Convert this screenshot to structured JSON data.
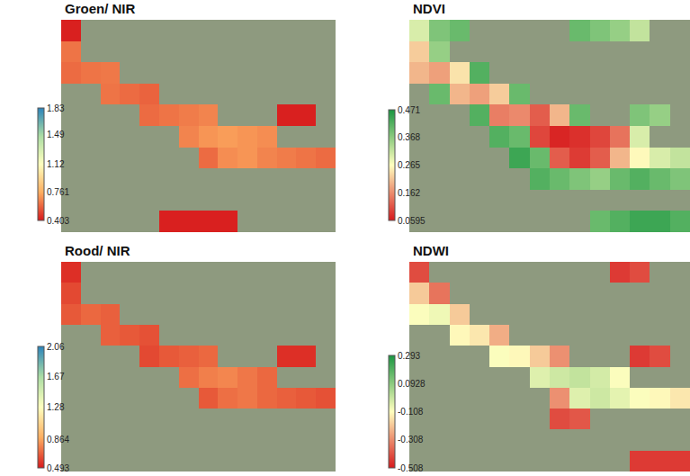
{
  "chart_data": [
    {
      "type": "heatmap",
      "title": "Groen/ NIR",
      "tick_labels": false,
      "colorbar_range": [
        0.403,
        1.83
      ],
      "colorbar_ticks": [
        0.403,
        0.761,
        1.12,
        1.49,
        1.83
      ],
      "cells": [
        [
          0.42,
          null,
          null,
          null,
          null,
          null,
          null,
          null,
          null,
          null,
          null,
          null,
          null,
          null
        ],
        [
          0.62,
          null,
          null,
          null,
          null,
          null,
          null,
          null,
          null,
          null,
          null,
          null,
          null,
          null
        ],
        [
          0.6,
          0.62,
          0.63,
          null,
          null,
          null,
          null,
          null,
          null,
          null,
          null,
          null,
          null,
          null
        ],
        [
          null,
          null,
          0.62,
          0.6,
          0.58,
          null,
          null,
          null,
          null,
          null,
          null,
          null,
          null,
          null
        ],
        [
          null,
          null,
          null,
          null,
          0.6,
          0.62,
          0.64,
          0.66,
          null,
          null,
          null,
          0.42,
          0.42,
          null
        ],
        [
          null,
          null,
          null,
          null,
          null,
          null,
          0.66,
          0.7,
          0.72,
          0.7,
          0.68,
          null,
          null,
          null
        ],
        [
          null,
          null,
          null,
          null,
          null,
          null,
          null,
          0.6,
          0.68,
          0.7,
          0.66,
          0.64,
          0.62,
          0.6
        ],
        [
          null,
          null,
          null,
          null,
          null,
          null,
          null,
          null,
          null,
          null,
          null,
          null,
          null,
          null
        ],
        [
          null,
          null,
          null,
          null,
          null,
          null,
          null,
          null,
          null,
          null,
          null,
          null,
          null,
          null
        ],
        [
          null,
          null,
          null,
          null,
          null,
          0.42,
          0.42,
          0.42,
          0.42,
          null,
          null,
          null,
          null,
          null
        ]
      ]
    },
    {
      "type": "heatmap",
      "title": "NDVI",
      "tick_labels": false,
      "colorbar_range": [
        0.0595,
        0.471
      ],
      "colorbar_ticks": [
        0.0595,
        0.162,
        0.265,
        0.368,
        0.471
      ],
      "cells": [
        [
          0.3,
          0.38,
          0.4,
          null,
          null,
          null,
          null,
          null,
          0.4,
          0.38,
          0.36,
          0.32,
          null,
          null
        ],
        [
          0.22,
          0.36,
          null,
          null,
          null,
          null,
          null,
          null,
          null,
          null,
          null,
          null,
          null,
          null
        ],
        [
          0.2,
          0.18,
          0.24,
          0.42,
          null,
          null,
          null,
          null,
          null,
          null,
          null,
          null,
          null,
          null
        ],
        [
          null,
          0.4,
          0.2,
          0.18,
          0.22,
          0.4,
          null,
          null,
          null,
          null,
          null,
          null,
          null,
          null
        ],
        [
          null,
          null,
          null,
          0.42,
          0.15,
          0.16,
          0.12,
          0.2,
          0.4,
          null,
          null,
          0.38,
          0.36,
          null
        ],
        [
          null,
          null,
          null,
          null,
          0.42,
          0.4,
          0.1,
          0.07,
          0.08,
          0.1,
          0.14,
          0.3,
          null,
          null
        ],
        [
          null,
          null,
          null,
          null,
          null,
          0.44,
          0.4,
          0.12,
          0.09,
          0.12,
          0.2,
          0.26,
          0.3,
          0.32
        ],
        [
          null,
          null,
          null,
          null,
          null,
          null,
          0.42,
          0.4,
          0.38,
          0.36,
          0.4,
          0.42,
          0.4,
          0.38
        ],
        [
          null,
          null,
          null,
          null,
          null,
          null,
          null,
          null,
          null,
          null,
          null,
          null,
          null,
          null
        ],
        [
          null,
          null,
          null,
          null,
          null,
          null,
          null,
          null,
          null,
          0.4,
          0.42,
          0.44,
          0.44,
          0.42
        ]
      ]
    },
    {
      "type": "heatmap",
      "title": "Rood/ NIR",
      "tick_labels": false,
      "colorbar_range": [
        0.493,
        2.06
      ],
      "colorbar_ticks": [
        0.493,
        0.864,
        1.28,
        1.67,
        2.06
      ],
      "cells": [
        [
          0.55,
          null,
          null,
          null,
          null,
          null,
          null,
          null,
          null,
          null,
          null,
          null,
          null,
          null
        ],
        [
          0.62,
          null,
          null,
          null,
          null,
          null,
          null,
          null,
          null,
          null,
          null,
          null,
          null,
          null
        ],
        [
          0.66,
          0.7,
          0.68,
          null,
          null,
          null,
          null,
          null,
          null,
          null,
          null,
          null,
          null,
          null
        ],
        [
          null,
          null,
          0.68,
          0.66,
          0.64,
          null,
          null,
          null,
          null,
          null,
          null,
          null,
          null,
          null
        ],
        [
          null,
          null,
          null,
          null,
          0.62,
          0.66,
          0.68,
          0.7,
          null,
          null,
          null,
          0.55,
          0.55,
          null
        ],
        [
          null,
          null,
          null,
          null,
          null,
          null,
          0.72,
          0.76,
          0.78,
          0.74,
          0.7,
          null,
          null,
          null
        ],
        [
          null,
          null,
          null,
          null,
          null,
          null,
          null,
          0.66,
          0.72,
          0.74,
          0.7,
          0.68,
          0.66,
          0.64
        ],
        [
          null,
          null,
          null,
          null,
          null,
          null,
          null,
          null,
          null,
          null,
          null,
          null,
          null,
          null
        ],
        [
          null,
          null,
          null,
          null,
          null,
          null,
          null,
          null,
          null,
          null,
          null,
          null,
          null,
          null
        ],
        [
          null,
          null,
          null,
          null,
          null,
          null,
          null,
          null,
          null,
          null,
          null,
          null,
          null,
          null
        ]
      ]
    },
    {
      "type": "heatmap",
      "title": "NDWI",
      "tick_labels": false,
      "colorbar_range": [
        -0.508,
        0.293
      ],
      "colorbar_ticks": [
        -0.508,
        -0.308,
        -0.108,
        0.0928,
        0.293
      ],
      "cells": [
        [
          -0.42,
          null,
          null,
          null,
          null,
          null,
          null,
          null,
          null,
          null,
          -0.45,
          -0.42,
          null,
          null
        ],
        [
          -0.2,
          -0.35,
          null,
          null,
          null,
          null,
          null,
          null,
          null,
          null,
          null,
          null,
          null,
          null
        ],
        [
          -0.1,
          -0.08,
          -0.2,
          null,
          null,
          null,
          null,
          null,
          null,
          null,
          null,
          null,
          null,
          null
        ],
        [
          null,
          null,
          -0.12,
          -0.15,
          -0.25,
          null,
          null,
          null,
          null,
          null,
          null,
          null,
          null,
          null
        ],
        [
          null,
          null,
          null,
          null,
          -0.1,
          -0.12,
          -0.2,
          -0.3,
          null,
          null,
          null,
          -0.45,
          -0.42,
          null
        ],
        [
          null,
          null,
          null,
          null,
          null,
          null,
          -0.05,
          -0.02,
          0.0,
          -0.03,
          -0.1,
          null,
          null,
          null
        ],
        [
          null,
          null,
          null,
          null,
          null,
          null,
          null,
          -0.3,
          -0.05,
          -0.02,
          -0.06,
          -0.1,
          -0.12,
          -0.15
        ],
        [
          null,
          null,
          null,
          null,
          null,
          null,
          null,
          -0.42,
          -0.4,
          null,
          null,
          null,
          null,
          null
        ],
        [
          null,
          null,
          null,
          null,
          null,
          null,
          null,
          null,
          null,
          null,
          null,
          null,
          null,
          null
        ],
        [
          null,
          null,
          null,
          null,
          null,
          null,
          null,
          null,
          null,
          null,
          null,
          -0.45,
          -0.45,
          -0.45
        ]
      ]
    }
  ]
}
